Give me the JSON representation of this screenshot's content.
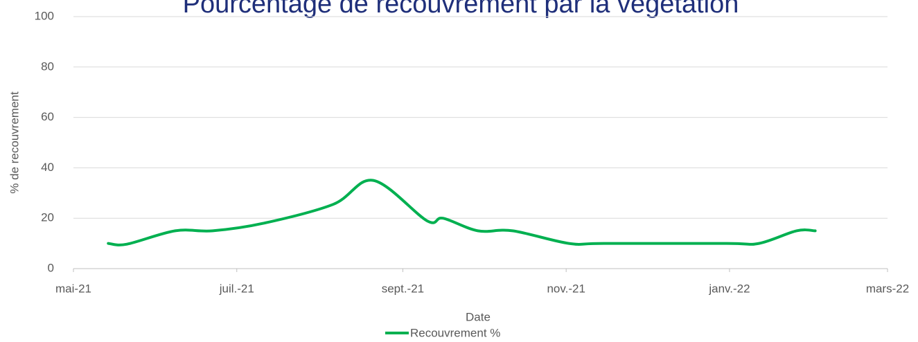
{
  "chart_data": {
    "type": "line",
    "title": "Pourcentage de recouvrement par la végétation",
    "x_label": "Date",
    "y_label": "% de recouvrement",
    "series": [
      {
        "name": "Recouvrement %",
        "color": "#00b050",
        "x": [
          "2021-05-14",
          "2021-05-21",
          "2021-06-08",
          "2021-06-22",
          "2021-07-11",
          "2021-08-06",
          "2021-08-21",
          "2021-09-10",
          "2021-09-16",
          "2021-09-29",
          "2021-10-12",
          "2021-11-02",
          "2021-11-15",
          "2021-12-31",
          "2022-01-12",
          "2022-01-26",
          "2022-02-02"
        ],
        "values": [
          10,
          9.7,
          15,
          15,
          18,
          25.5,
          35,
          19,
          20,
          15,
          15,
          10,
          10,
          10,
          10,
          15,
          15
        ]
      }
    ],
    "xlim": [
      "2021-05-01",
      "2022-03-01"
    ],
    "xticks": [
      {
        "value": "2021-05-01",
        "label": "mai-21"
      },
      {
        "value": "2021-07-01",
        "label": "juil.-21"
      },
      {
        "value": "2021-09-01",
        "label": "sept.-21"
      },
      {
        "value": "2021-11-01",
        "label": "nov.-21"
      },
      {
        "value": "2022-01-01",
        "label": "janv.-22"
      },
      {
        "value": "2022-03-01",
        "label": "mars-22"
      }
    ],
    "ylim": [
      0,
      100
    ],
    "yticks": [
      0,
      20,
      40,
      60,
      80,
      100
    ],
    "grid": true,
    "legend": "bottom"
  }
}
